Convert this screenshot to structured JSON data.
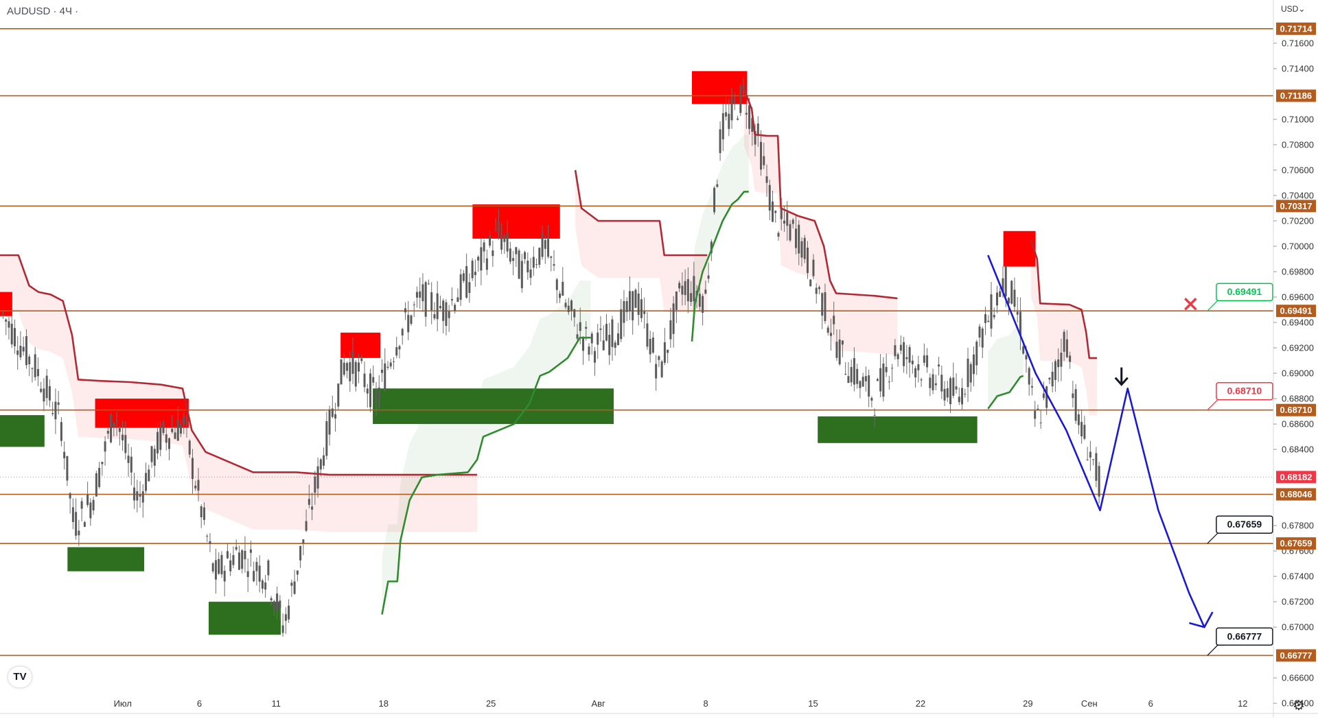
{
  "header": {
    "symbol": "AUDUSD · 4Ч ·",
    "currency": "USD⌄"
  },
  "logo": {
    "text": "TV"
  },
  "chart_data": {
    "type": "candlestick",
    "ylim": [
      0.6632,
      0.7194
    ],
    "y_ticks": [
      "0.71600",
      "0.71400",
      "0.71000",
      "0.70800",
      "0.70600",
      "0.70400",
      "0.70200",
      "0.70000",
      "0.69800",
      "0.69600",
      "0.69400",
      "0.69200",
      "0.69000",
      "0.68800",
      "0.68600",
      "0.68400",
      "0.67800",
      "0.67600",
      "0.67400",
      "0.67200",
      "0.67000",
      "0.66600",
      "0.66400"
    ],
    "y_tick_values": [
      0.716,
      0.714,
      0.71,
      0.708,
      0.706,
      0.704,
      0.702,
      0.7,
      0.698,
      0.696,
      0.694,
      0.692,
      0.69,
      0.688,
      0.686,
      0.684,
      0.678,
      0.676,
      0.674,
      0.672,
      0.67,
      0.666,
      0.664
    ],
    "x_ticks": [
      {
        "label": "Июл",
        "x": 0.5
      },
      {
        "label": "6",
        "x": 5.5
      },
      {
        "label": "11",
        "x": 10.5
      },
      {
        "label": "18",
        "x": 17.5
      },
      {
        "label": "25",
        "x": 24.5
      },
      {
        "label": "Авг",
        "x": 31.5
      },
      {
        "label": "8",
        "x": 38.5
      },
      {
        "label": "15",
        "x": 45.5
      },
      {
        "label": "22",
        "x": 52.5
      },
      {
        "label": "29",
        "x": 59.5
      },
      {
        "label": "Сен",
        "x": 63.5
      },
      {
        "label": "6",
        "x": 67.5
      },
      {
        "label": "12",
        "x": 73.5
      }
    ],
    "x_domain": [
      -7.5,
      75.5
    ],
    "levels": [
      {
        "label": "0.71714",
        "value": 0.71714
      },
      {
        "label": "0.71186",
        "value": 0.71186
      },
      {
        "label": "0.70317",
        "value": 0.70317
      },
      {
        "label": "0.69491",
        "value": 0.69491
      },
      {
        "label": "0.68710",
        "value": 0.6871
      },
      {
        "label": "0.68046",
        "value": 0.68046
      },
      {
        "label": "0.67659",
        "value": 0.67659
      },
      {
        "label": "0.66777",
        "value": 0.66777
      }
    ],
    "current_price": {
      "label": "0.68182",
      "value": 0.68182
    },
    "callouts": [
      {
        "label": "0.69491",
        "value": 0.69491,
        "color": "#00c853",
        "x": 71.2
      },
      {
        "label": "0.68710",
        "value": 0.6871,
        "color": "#f23645",
        "x": 71.2
      },
      {
        "label": "0.67659",
        "value": 0.67659,
        "color": "#131722",
        "x": 71.2
      },
      {
        "label": "0.66777",
        "value": 0.66777,
        "color": "#131722",
        "x": 71.2
      }
    ],
    "supply_zones": [
      {
        "x0": -7.5,
        "x1": -6.7,
        "p_hi": 0.6964,
        "p_lo": 0.6945
      },
      {
        "x0": -1.3,
        "x1": 4.8,
        "p_hi": 0.688,
        "p_lo": 0.6857
      },
      {
        "x0": 14.7,
        "x1": 17.3,
        "p_hi": 0.6932,
        "p_lo": 0.6912
      },
      {
        "x0": 23.3,
        "x1": 29.0,
        "p_hi": 0.7033,
        "p_lo": 0.7006
      },
      {
        "x0": 37.6,
        "x1": 41.2,
        "p_hi": 0.7138,
        "p_lo": 0.7112
      },
      {
        "x0": 57.9,
        "x1": 60.0,
        "p_hi": 0.7012,
        "p_lo": 0.6984
      }
    ],
    "demand_zones": [
      {
        "x0": -7.5,
        "x1": -4.6,
        "p_hi": 0.6867,
        "p_lo": 0.6842
      },
      {
        "x0": -3.1,
        "x1": 1.9,
        "p_hi": 0.6763,
        "p_lo": 0.6744
      },
      {
        "x0": 6.1,
        "x1": 10.8,
        "p_hi": 0.672,
        "p_lo": 0.6694
      },
      {
        "x0": 16.8,
        "x1": 32.5,
        "p_hi": 0.6888,
        "p_lo": 0.686
      },
      {
        "x0": 45.8,
        "x1": 56.2,
        "p_hi": 0.6866,
        "p_lo": 0.6845
      }
    ],
    "series": [
      {
        "kind": "resistance_line",
        "color": "#b22833",
        "points": [
          [
            -7.5,
            0.6993
          ],
          [
            -6.3,
            0.6993
          ],
          [
            -5.6,
            0.6969
          ],
          [
            -5.0,
            0.6964
          ],
          [
            -4.2,
            0.6962
          ],
          [
            -3.4,
            0.6957
          ],
          [
            -2.8,
            0.693
          ],
          [
            -2.4,
            0.6895
          ],
          [
            -1.0,
            0.6894
          ],
          [
            1.0,
            0.6893
          ],
          [
            3.0,
            0.6891
          ],
          [
            4.4,
            0.6888
          ],
          [
            5.0,
            0.6855
          ],
          [
            5.9,
            0.6838
          ],
          [
            9.0,
            0.6822
          ],
          [
            11.8,
            0.6822
          ],
          [
            14.0,
            0.682
          ],
          [
            17.4,
            0.682
          ],
          [
            23.6,
            0.682
          ]
        ]
      },
      {
        "kind": "resistance_line",
        "color": "#b22833",
        "points": [
          [
            30.0,
            0.706
          ],
          [
            30.4,
            0.703
          ],
          [
            31.5,
            0.702
          ],
          [
            33.0,
            0.702
          ],
          [
            35.5,
            0.702
          ],
          [
            35.8,
            0.6993
          ],
          [
            38.0,
            0.6993
          ],
          [
            38.6,
            0.6993
          ]
        ]
      },
      {
        "kind": "resistance_line",
        "color": "#b22833",
        "points": [
          [
            41.0,
            0.7124
          ],
          [
            41.5,
            0.7108
          ],
          [
            41.7,
            0.7088
          ],
          [
            42.5,
            0.7087
          ],
          [
            43.2,
            0.7087
          ],
          [
            43.4,
            0.703
          ],
          [
            44.5,
            0.7024
          ],
          [
            45.6,
            0.702
          ],
          [
            46.2,
            0.7
          ],
          [
            46.6,
            0.6973
          ],
          [
            47.0,
            0.6963
          ],
          [
            49.5,
            0.6961
          ],
          [
            51.0,
            0.6959
          ]
        ]
      },
      {
        "kind": "resistance_line",
        "color": "#b22833",
        "points": [
          [
            59.7,
            0.7005
          ],
          [
            60.1,
            0.699
          ],
          [
            60.3,
            0.6955
          ],
          [
            62.2,
            0.6954
          ],
          [
            63.0,
            0.695
          ],
          [
            63.3,
            0.6932
          ],
          [
            63.5,
            0.6912
          ],
          [
            64.0,
            0.6912
          ]
        ]
      },
      {
        "kind": "support_line",
        "color": "#2e8b2e",
        "points": [
          [
            17.4,
            0.671
          ],
          [
            17.8,
            0.6736
          ],
          [
            18.4,
            0.6736
          ],
          [
            18.6,
            0.6768
          ],
          [
            19.2,
            0.68
          ],
          [
            20.0,
            0.6818
          ],
          [
            21.0,
            0.682
          ],
          [
            23.0,
            0.6822
          ],
          [
            23.6,
            0.6832
          ],
          [
            24.0,
            0.685
          ],
          [
            25.0,
            0.6855
          ],
          [
            26.0,
            0.686
          ],
          [
            27.0,
            0.6876
          ],
          [
            27.7,
            0.6898
          ],
          [
            28.3,
            0.6901
          ],
          [
            29.5,
            0.6912
          ],
          [
            30.3,
            0.6928
          ],
          [
            30.5,
            0.6928
          ],
          [
            31.0,
            0.6928
          ]
        ]
      },
      {
        "kind": "support_line",
        "color": "#2e8b2e",
        "points": [
          [
            37.6,
            0.6925
          ],
          [
            37.8,
            0.6955
          ],
          [
            38.3,
            0.698
          ],
          [
            38.8,
            0.6995
          ],
          [
            39.6,
            0.702
          ],
          [
            40.2,
            0.7033
          ],
          [
            40.6,
            0.7037
          ],
          [
            41.0,
            0.7043
          ],
          [
            41.3,
            0.7043
          ]
        ]
      },
      {
        "kind": "support_line",
        "color": "#2e8b2e",
        "points": [
          [
            56.9,
            0.6872
          ],
          [
            57.5,
            0.6882
          ],
          [
            58.3,
            0.6885
          ],
          [
            59.0,
            0.6897
          ],
          [
            59.2,
            0.6898
          ]
        ]
      },
      {
        "kind": "forecast_path",
        "color": "#1a1ad6",
        "points": [
          [
            56.9,
            0.6993
          ],
          [
            58.0,
            0.696
          ],
          [
            60.0,
            0.69
          ],
          [
            62.0,
            0.6855
          ],
          [
            64.2,
            0.6792
          ],
          [
            66.0,
            0.6888
          ],
          [
            68.0,
            0.6792
          ],
          [
            70.0,
            0.6727
          ],
          [
            71.0,
            0.67
          ]
        ]
      }
    ],
    "candles_summary": "4H AUDUSD candles approx. 0.6686–0.7134 from late June to end of August",
    "cross_marker": {
      "x": 70.1,
      "value": 0.69491,
      "color": "#f23645"
    },
    "down_arrow": {
      "x": 65.6,
      "value": 0.6897,
      "color": "#131722"
    }
  }
}
